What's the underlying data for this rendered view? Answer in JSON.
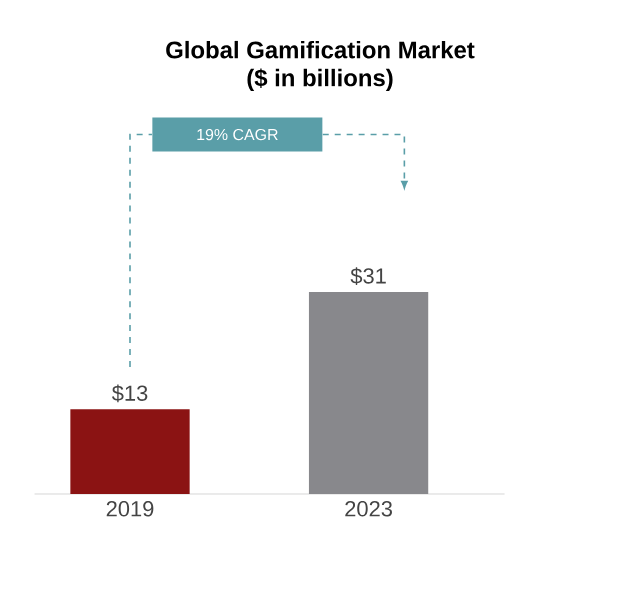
{
  "chart_data": {
    "type": "bar",
    "title": "Global Gamification Market",
    "subtitle": "($ in billions)",
    "categories": [
      "2019",
      "2023"
    ],
    "values": [
      13,
      31
    ],
    "value_labels": [
      "$13",
      "$31"
    ],
    "colors": [
      "#8b1313",
      "#88888c"
    ],
    "annotations": [
      "19% CAGR"
    ]
  }
}
